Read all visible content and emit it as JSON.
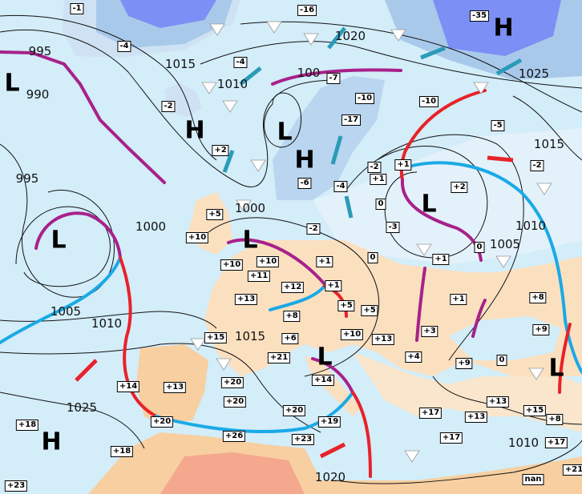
{
  "colors": {
    "ocean": "#d3edf9",
    "land_warm": "#fbe0c0",
    "land_hot": "#f4a88e",
    "snow_land": "#a9c9ea",
    "deep_cold": "#7b8ff4",
    "warm_front": "#e8222a",
    "cold_front": "#1aa9e6",
    "occluded_front": "#a8218a",
    "wind_arrow": "#2a9bb8"
  },
  "temperature_labels": [
    "-1",
    "-4",
    "-4",
    "-2",
    "+2",
    "-16",
    "-35",
    "-7",
    "-10",
    "-10",
    "-17",
    "-5",
    "-2",
    "-6",
    "-4",
    "-2",
    "+1",
    "+1",
    "+2",
    "0",
    "-3",
    "-2",
    "0",
    "+5",
    "+10",
    "+10",
    "+10",
    "+11",
    "+1",
    "+1",
    "+12",
    "+13",
    "+8",
    "+5",
    "+5",
    "0",
    "+1",
    "+1",
    "+3",
    "+4",
    "+10",
    "+13",
    "+6",
    "+15",
    "+21",
    "+14",
    "+13",
    "+20",
    "+20",
    "+20",
    "+26",
    "+18",
    "+18",
    "+23",
    "+14",
    "+19",
    "+23",
    "+20",
    "+17",
    "+17",
    "+13",
    "+13",
    "+9",
    "0",
    "+8",
    "+9",
    "+15",
    "+8",
    "+17",
    "+21",
    "nan"
  ],
  "isobar_labels": [
    "995",
    "990",
    "1015",
    "1010",
    "995",
    "1000",
    "1020",
    "100",
    "1025",
    "1015",
    "1010",
    "1005",
    "1005",
    "1010",
    "1015",
    "1025",
    "1020",
    "1010",
    "1000"
  ],
  "pressure_centers": [
    "L",
    "H",
    "L",
    "H",
    "L",
    "L",
    "L",
    "H",
    "H",
    "L",
    "L"
  ]
}
